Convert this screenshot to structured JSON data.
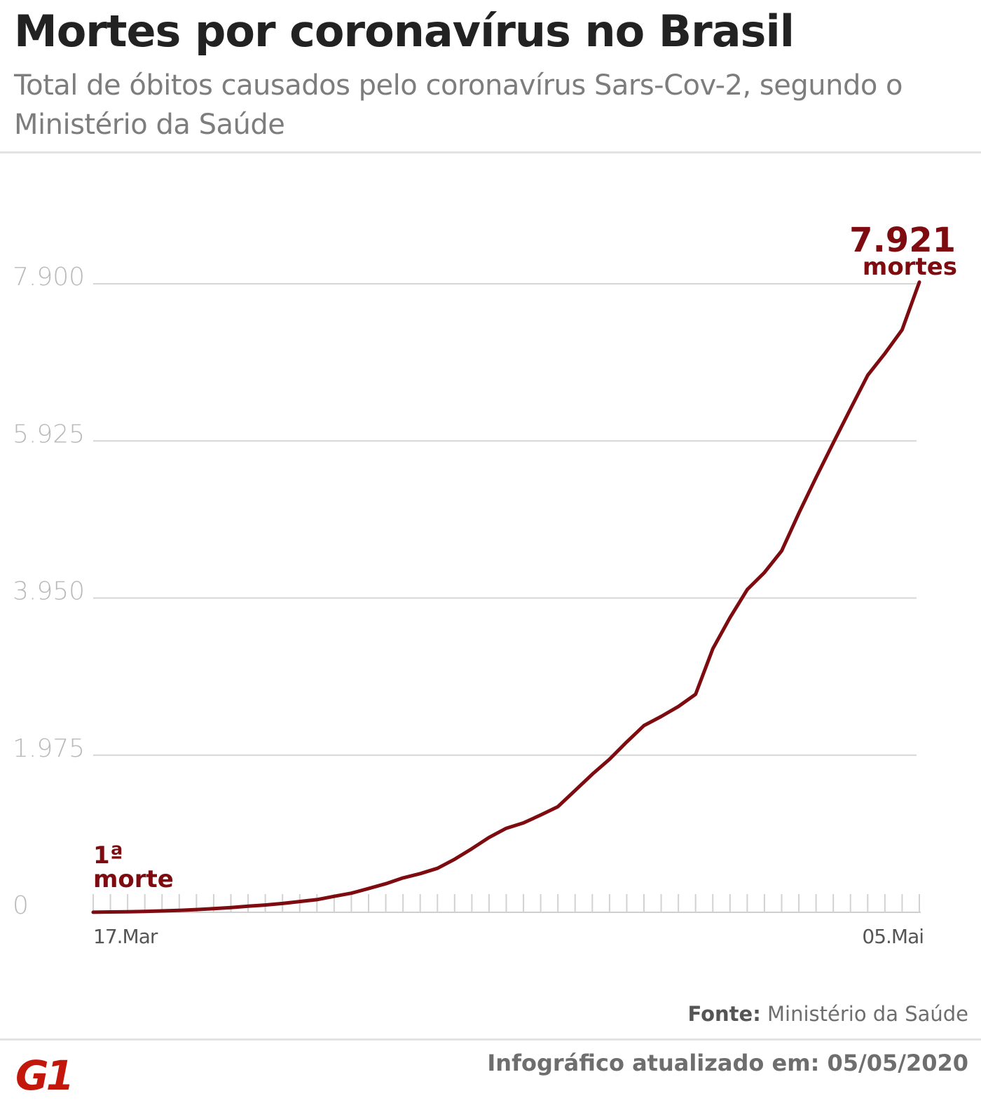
{
  "header": {
    "title": "Mortes por coronavírus no Brasil",
    "subtitle": "Total de óbitos causados pelo coronavírus Sars-Cov-2, segundo o Ministério da Saúde"
  },
  "footer": {
    "source_label": "Fonte:",
    "source_value": "Ministério da Saúde",
    "updated_text": "Infográfico atualizado em: 05/05/2020",
    "logo_text": "G1"
  },
  "colors": {
    "line": "#7e0b0f",
    "grid": "#d6d6d6",
    "tick_text": "#b9b9b9",
    "axis_text": "#555555",
    "logo": "#c4170c"
  },
  "chart_data": {
    "type": "line",
    "title": "Mortes por coronavírus no Brasil",
    "subtitle": "Total de óbitos causados pelo coronavírus Sars-Cov-2, segundo o Ministério da Saúde",
    "xlabel": "",
    "ylabel": "",
    "ylim": [
      0,
      7900
    ],
    "yticks": [
      0,
      1975,
      3950,
      5925,
      7900
    ],
    "ytick_labels": [
      "0",
      "1.975",
      "3.950",
      "5.925",
      "7.900"
    ],
    "x_start_label": "17.Mar",
    "x_end_label": "05.Mai",
    "grid": true,
    "series": [
      {
        "values": [
          1,
          4,
          7,
          11,
          18,
          25,
          34,
          46,
          59,
          77,
          92,
          111,
          136,
          159,
          201,
          240,
          299,
          359,
          432,
          486,
          553,
          667,
          800,
          941,
          1056,
          1124,
          1223,
          1328,
          1532,
          1736,
          1924,
          2141,
          2347,
          2462,
          2587,
          2741,
          3313,
          3704,
          4057,
          4271,
          4543,
          5017,
          5466,
          5901,
          6329,
          6750,
          7025,
          7321,
          7921
        ]
      }
    ],
    "annotations": [
      {
        "label_value": "7.921",
        "label_unit": "mortes"
      },
      {
        "label_value": "1ª",
        "label_unit": "morte"
      }
    ]
  }
}
